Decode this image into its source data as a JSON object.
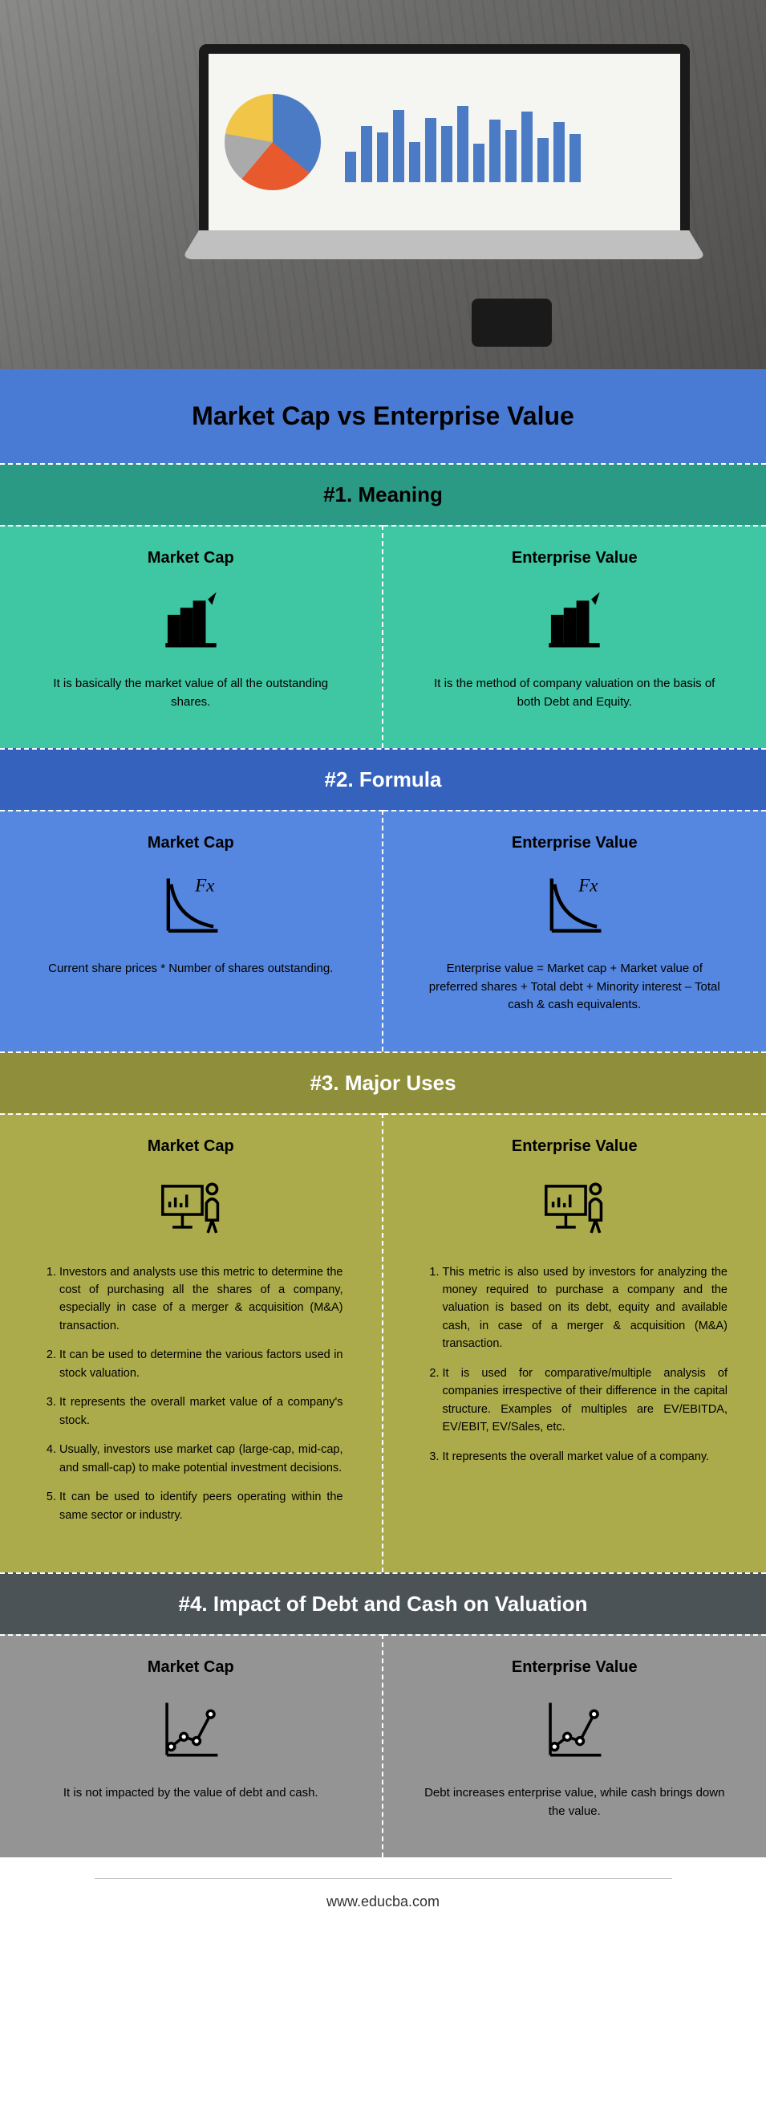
{
  "page": {
    "title": "Market Cap vs Enterprise Value",
    "footer_url": "www.educba.com"
  },
  "sections": {
    "meaning": {
      "heading": "#1. Meaning",
      "left_title": "Market Cap",
      "right_title": "Enterprise Value",
      "left_text": "It is basically the market value of all the outstanding shares.",
      "right_text": "It is the method of company valuation on the basis of both Debt and Equity.",
      "header_bg": "#2b9a85",
      "body_bg": "#3fc6a3"
    },
    "formula": {
      "heading": "#2. Formula",
      "left_title": "Market Cap",
      "right_title": "Enterprise Value",
      "left_text": "Current share prices * Number of shares outstanding.",
      "right_text": "Enterprise value = Market cap + Market value of preferred shares + Total debt + Minority interest – Total cash & cash equivalents.",
      "header_bg": "#3462bd",
      "body_bg": "#5587e0"
    },
    "uses": {
      "heading": "#3. Major Uses",
      "left_title": "Market Cap",
      "right_title": "Enterprise Value",
      "left_items": [
        "Investors and analysts use this metric to determine the cost of purchasing all the shares of a company, especially in case of a merger & acquisition (M&A) transaction.",
        "It can be used to determine the various factors used in stock valuation.",
        "It represents the overall market value of a company's stock.",
        "Usually, investors use market cap (large-cap, mid-cap, and small-cap) to make potential investment decisions.",
        "It can be used to identify peers operating within the same sector or industry."
      ],
      "right_items": [
        "This metric is also used by investors for analyzing the money required to purchase a company and the valuation is based on its debt, equity and available cash, in case of a merger & acquisition (M&A) transaction.",
        "It is used for comparative/multiple analysis of companies irrespective of their difference in the capital structure. Examples of multiples are EV/EBITDA, EV/EBIT, EV/Sales, etc.",
        "It represents the overall market value of a company."
      ],
      "header_bg": "#8f8e3b",
      "body_bg": "#abab4b"
    },
    "impact": {
      "heading": "#4. Impact of Debt and Cash on Valuation",
      "left_title": "Market Cap",
      "right_title": "Enterprise Value",
      "left_text": "It is not impacted by the value of debt and cash.",
      "right_text": "Debt increases enterprise value, while cash brings down the value.",
      "header_bg": "#4b5357",
      "body_bg": "#949494"
    }
  },
  "hero_chart": {
    "pie_colors": [
      "#4a7bc4",
      "#e85a2e",
      "#aaa",
      "#f0c548"
    ],
    "bar_heights_pct": [
      38,
      70,
      62,
      90,
      50,
      80,
      70,
      95,
      48,
      78,
      65,
      88,
      55,
      75,
      60
    ]
  }
}
